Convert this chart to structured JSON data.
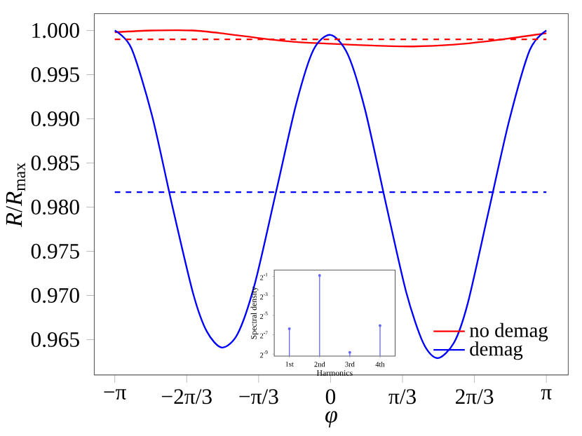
{
  "chart_data": [
    {
      "type": "line",
      "xlabel": "*φ*",
      "ylabel": "*R*/*R*$_{max}$",
      "legend": "bottom right",
      "xlim": [
        -3.44,
        3.46
      ],
      "ylim": [
        0.961,
        1.0019
      ],
      "xticks": [
        {
          "value": -3.1416,
          "label": "−π"
        },
        {
          "value": -2.0944,
          "label": "−2π/3"
        },
        {
          "value": -1.0472,
          "label": "−π/3"
        },
        0,
        {
          "value": 1.0472,
          "label": "π/3"
        },
        {
          "value": 2.0944,
          "label": "2π/3"
        },
        {
          "value": 3.1416,
          "label": "π"
        }
      ],
      "yticks": [
        {
          "value": 0.965,
          "label": "0.965"
        },
        {
          "value": 0.97,
          "label": "0.970"
        },
        {
          "value": 0.975,
          "label": "0.975"
        },
        {
          "value": 0.98,
          "label": "0.980"
        },
        {
          "value": 0.985,
          "label": "0.985"
        },
        {
          "value": 0.99,
          "label": "0.990"
        },
        {
          "value": 0.995,
          "label": "0.995"
        },
        {
          "value": 1.0,
          "label": "1.000"
        }
      ],
      "series": [
        {
          "name": "no demag",
          "color": "#ff0000",
          "line_style": "solid",
          "x": [
            -3.1416,
            -2.6,
            -2.0,
            -1.5,
            -1.0,
            -0.5,
            0,
            0.6,
            1.2,
            1.8,
            2.4,
            3.1416
          ],
          "values": [
            0.9998,
            1.0,
            1.0,
            0.9996,
            0.9991,
            0.9987,
            0.9985,
            0.9983,
            0.9982,
            0.9984,
            0.9989,
            0.9997
          ]
        },
        {
          "name": "demag",
          "color": "#0000ff",
          "line_style": "solid",
          "x": [
            -3.1416,
            -2.9,
            -2.6,
            -2.3,
            -2.0,
            -1.8,
            -1.58,
            -1.35,
            -1.1,
            -0.8,
            -0.5,
            -0.25,
            0,
            0.25,
            0.5,
            0.8,
            1.1,
            1.35,
            1.56,
            1.8,
            2.0,
            2.3,
            2.6,
            2.9,
            3.1416
          ],
          "values": [
            1.0,
            0.998,
            0.9904,
            0.98,
            0.9702,
            0.9659,
            0.9641,
            0.9657,
            0.9714,
            0.9815,
            0.9917,
            0.9978,
            0.9995,
            0.9973,
            0.9911,
            0.9806,
            0.9704,
            0.9646,
            0.9629,
            0.9647,
            0.9692,
            0.9795,
            0.9898,
            0.9978,
            1.0
          ]
        },
        {
          "color": "#ff0000",
          "line_style": "dashed",
          "x": [
            -3.1416,
            3.1416
          ],
          "values": [
            0.999,
            0.999
          ]
        },
        {
          "color": "#0000ff",
          "line_style": "dashed",
          "x": [
            -3.1416,
            3.1416
          ],
          "values": [
            0.9817,
            0.9817
          ]
        }
      ]
    },
    {
      "type": "lollipop",
      "xlabel": "Harmonics",
      "ylabel": "Spectral density",
      "log": "y",
      "marker": "circle",
      "color": "#6666ff",
      "categories": [
        "1st",
        "2nd",
        "3rd",
        "4th"
      ],
      "values": [
        0.012,
        0.54,
        0.0022,
        0.015
      ],
      "ylim": [
        0.0017,
        0.8
      ],
      "yticks": [
        {
          "value": 0.001953125,
          "label": "2$^{-9}$"
        },
        {
          "value": 0.0078125,
          "label": "2$^{-7}$"
        },
        {
          "value": 0.03125,
          "label": "2$^{-5}$"
        },
        {
          "value": 0.125,
          "label": "2$^{-3}$"
        },
        {
          "value": 0.5,
          "label": "2$^{-1}$"
        }
      ]
    }
  ]
}
